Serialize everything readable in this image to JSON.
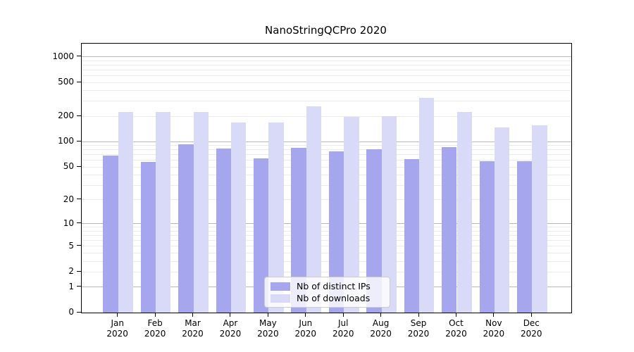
{
  "title": "NanoStringQCPro 2020",
  "legend": {
    "items": [
      {
        "label": "Nb of distinct IPs",
        "color": "#a6a6ee"
      },
      {
        "label": "Nb of downloads",
        "color": "#d9d9f8"
      }
    ]
  },
  "colors": {
    "distinct_ips_bar": "#a6a6ee",
    "downloads_bar": "#d9d9f8",
    "major_grid": "#b8b8b8",
    "minor_grid": "#ebebeb",
    "axis": "#000000",
    "legend_border": "#cccccc"
  },
  "chart_data": {
    "type": "bar",
    "title": "NanoStringQCPro 2020",
    "categories": [
      "Jan",
      "Feb",
      "Mar",
      "Apr",
      "May",
      "Jun",
      "Jul",
      "Aug",
      "Sep",
      "Oct",
      "Nov",
      "Dec"
    ],
    "year": "2020",
    "series": [
      {
        "name": "Nb of distinct IPs",
        "color": "#a6a6ee",
        "values": [
          69,
          58,
          94,
          83,
          63,
          85,
          77,
          81,
          62,
          86,
          59,
          59
        ]
      },
      {
        "name": "Nb of downloads",
        "color": "#d9d9f8",
        "values": [
          225,
          225,
          225,
          170,
          168,
          264,
          199,
          202,
          328,
          224,
          148,
          157
        ]
      }
    ],
    "xlabel": "",
    "ylabel": "",
    "yscale": "log1p",
    "ylim": [
      0,
      1430
    ],
    "yticks": [
      0,
      1,
      2,
      5,
      10,
      20,
      50,
      100,
      200,
      500,
      1000
    ],
    "ytick_labels": [
      "0",
      "1",
      "2",
      "5",
      "10",
      "20",
      "50",
      "100",
      "200",
      "500",
      "1000"
    ],
    "grid": "horizontal major (powers of 10, darker) and log minor lines (lighter)",
    "legend_position": "lower center, inside axes"
  }
}
